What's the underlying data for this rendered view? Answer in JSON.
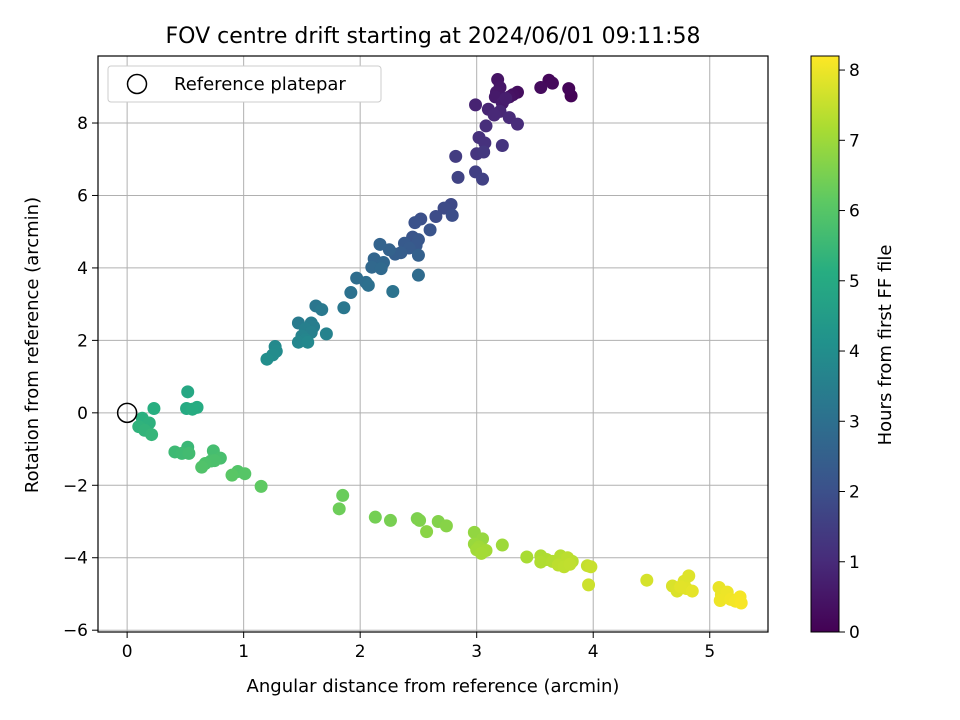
{
  "chart_data": {
    "type": "scatter",
    "title": "FOV centre drift starting at 2024/06/01 09:11:58",
    "xlabel": "Angular distance from reference (arcmin)",
    "ylabel": "Rotation from reference (arcmin)",
    "xlim": [
      -0.25,
      5.5
    ],
    "ylim": [
      -6.05,
      9.85
    ],
    "xticks": [
      0,
      1,
      2,
      3,
      4,
      5
    ],
    "yticks": [
      -6,
      -4,
      -2,
      0,
      2,
      4,
      6,
      8
    ],
    "grid": true,
    "legend": {
      "placement": "top-left",
      "entries": [
        "Reference platepar"
      ]
    },
    "reference_point": {
      "x": 0,
      "y": 0,
      "label": "Reference platepar"
    },
    "colorbar": {
      "label": "Hours from first FF file",
      "colormap": "viridis",
      "range": [
        0,
        8.2
      ],
      "ticks": [
        0,
        1,
        2,
        3,
        4,
        5,
        6,
        7,
        8
      ]
    },
    "points": [
      {
        "x": 3.81,
        "y": 8.75,
        "c": 0.05
      },
      {
        "x": 3.79,
        "y": 8.95,
        "c": 0.1
      },
      {
        "x": 3.62,
        "y": 9.18,
        "c": 0.15
      },
      {
        "x": 3.65,
        "y": 9.1,
        "c": 0.2
      },
      {
        "x": 3.55,
        "y": 8.98,
        "c": 0.25
      },
      {
        "x": 3.35,
        "y": 8.85,
        "c": 0.3
      },
      {
        "x": 3.31,
        "y": 8.78,
        "c": 0.35
      },
      {
        "x": 3.28,
        "y": 8.72,
        "c": 0.4
      },
      {
        "x": 3.18,
        "y": 9.2,
        "c": 0.45
      },
      {
        "x": 3.2,
        "y": 8.98,
        "c": 0.5
      },
      {
        "x": 3.17,
        "y": 8.85,
        "c": 0.55
      },
      {
        "x": 3.16,
        "y": 8.72,
        "c": 0.6
      },
      {
        "x": 3.22,
        "y": 8.55,
        "c": 0.65
      },
      {
        "x": 3.25,
        "y": 8.68,
        "c": 0.7
      },
      {
        "x": 2.99,
        "y": 8.5,
        "c": 0.8
      },
      {
        "x": 3.1,
        "y": 8.38,
        "c": 0.85
      },
      {
        "x": 3.2,
        "y": 8.32,
        "c": 0.9
      },
      {
        "x": 3.15,
        "y": 8.22,
        "c": 0.95
      },
      {
        "x": 3.28,
        "y": 8.15,
        "c": 1.0
      },
      {
        "x": 3.35,
        "y": 7.97,
        "c": 1.05
      },
      {
        "x": 3.08,
        "y": 7.92,
        "c": 1.1
      },
      {
        "x": 3.02,
        "y": 7.6,
        "c": 1.15
      },
      {
        "x": 3.07,
        "y": 7.45,
        "c": 1.2
      },
      {
        "x": 3.22,
        "y": 7.38,
        "c": 1.25
      },
      {
        "x": 3.0,
        "y": 7.15,
        "c": 1.3
      },
      {
        "x": 3.06,
        "y": 7.2,
        "c": 1.35
      },
      {
        "x": 2.82,
        "y": 7.08,
        "c": 1.45
      },
      {
        "x": 2.99,
        "y": 6.65,
        "c": 1.55
      },
      {
        "x": 3.05,
        "y": 6.45,
        "c": 1.6
      },
      {
        "x": 2.84,
        "y": 6.5,
        "c": 1.65
      },
      {
        "x": 2.78,
        "y": 5.75,
        "c": 1.8
      },
      {
        "x": 2.72,
        "y": 5.65,
        "c": 1.85
      },
      {
        "x": 2.65,
        "y": 5.42,
        "c": 1.9
      },
      {
        "x": 2.79,
        "y": 5.45,
        "c": 1.95
      },
      {
        "x": 2.52,
        "y": 5.35,
        "c": 2.0
      },
      {
        "x": 2.47,
        "y": 5.25,
        "c": 2.05
      },
      {
        "x": 2.6,
        "y": 5.05,
        "c": 2.1
      },
      {
        "x": 2.45,
        "y": 4.85,
        "c": 2.15
      },
      {
        "x": 2.5,
        "y": 4.78,
        "c": 2.2
      },
      {
        "x": 2.48,
        "y": 4.62,
        "c": 2.25
      },
      {
        "x": 2.38,
        "y": 4.68,
        "c": 2.3
      },
      {
        "x": 2.42,
        "y": 4.55,
        "c": 2.35
      },
      {
        "x": 2.35,
        "y": 4.42,
        "c": 2.4
      },
      {
        "x": 2.3,
        "y": 4.38,
        "c": 2.45
      },
      {
        "x": 2.5,
        "y": 4.35,
        "c": 2.5
      },
      {
        "x": 2.25,
        "y": 4.5,
        "c": 2.55
      },
      {
        "x": 2.17,
        "y": 4.65,
        "c": 2.6
      },
      {
        "x": 2.12,
        "y": 4.25,
        "c": 2.65
      },
      {
        "x": 2.2,
        "y": 4.15,
        "c": 2.7
      },
      {
        "x": 2.1,
        "y": 4.02,
        "c": 2.75
      },
      {
        "x": 2.18,
        "y": 3.98,
        "c": 2.8
      },
      {
        "x": 2.5,
        "y": 3.8,
        "c": 2.85
      },
      {
        "x": 1.97,
        "y": 3.72,
        "c": 2.9
      },
      {
        "x": 2.05,
        "y": 3.6,
        "c": 2.95
      },
      {
        "x": 2.07,
        "y": 3.52,
        "c": 3.0
      },
      {
        "x": 1.92,
        "y": 3.32,
        "c": 3.05
      },
      {
        "x": 2.28,
        "y": 3.35,
        "c": 3.1
      },
      {
        "x": 1.62,
        "y": 2.95,
        "c": 3.2
      },
      {
        "x": 1.86,
        "y": 2.9,
        "c": 3.25
      },
      {
        "x": 1.67,
        "y": 2.85,
        "c": 3.3
      },
      {
        "x": 1.47,
        "y": 2.48,
        "c": 3.35
      },
      {
        "x": 1.58,
        "y": 2.48,
        "c": 3.4
      },
      {
        "x": 1.6,
        "y": 2.38,
        "c": 3.45
      },
      {
        "x": 1.53,
        "y": 2.32,
        "c": 3.5
      },
      {
        "x": 1.58,
        "y": 2.22,
        "c": 3.55
      },
      {
        "x": 1.71,
        "y": 2.18,
        "c": 3.6
      },
      {
        "x": 1.5,
        "y": 2.12,
        "c": 3.65
      },
      {
        "x": 1.53,
        "y": 2.02,
        "c": 3.7
      },
      {
        "x": 1.47,
        "y": 1.95,
        "c": 3.75
      },
      {
        "x": 1.55,
        "y": 1.95,
        "c": 3.8
      },
      {
        "x": 1.27,
        "y": 1.83,
        "c": 3.85
      },
      {
        "x": 1.28,
        "y": 1.7,
        "c": 3.9
      },
      {
        "x": 1.25,
        "y": 1.6,
        "c": 3.95
      },
      {
        "x": 1.2,
        "y": 1.48,
        "c": 4.0
      },
      {
        "x": 0.52,
        "y": 0.58,
        "c": 4.9
      },
      {
        "x": 0.51,
        "y": 0.12,
        "c": 5.0
      },
      {
        "x": 0.6,
        "y": 0.15,
        "c": 5.05
      },
      {
        "x": 0.56,
        "y": 0.1,
        "c": 5.1
      },
      {
        "x": 0.23,
        "y": 0.12,
        "c": 5.15
      },
      {
        "x": 0.13,
        "y": -0.15,
        "c": 5.2
      },
      {
        "x": 0.19,
        "y": -0.28,
        "c": 5.25
      },
      {
        "x": 0.1,
        "y": -0.38,
        "c": 5.3
      },
      {
        "x": 0.15,
        "y": -0.48,
        "c": 5.35
      },
      {
        "x": 0.21,
        "y": -0.6,
        "c": 5.4
      },
      {
        "x": 0.52,
        "y": -0.95,
        "c": 5.5
      },
      {
        "x": 0.41,
        "y": -1.08,
        "c": 5.55
      },
      {
        "x": 0.47,
        "y": -1.12,
        "c": 5.6
      },
      {
        "x": 0.53,
        "y": -1.12,
        "c": 5.65
      },
      {
        "x": 0.74,
        "y": -1.05,
        "c": 5.7
      },
      {
        "x": 0.8,
        "y": -1.25,
        "c": 5.75
      },
      {
        "x": 0.72,
        "y": -1.33,
        "c": 5.8
      },
      {
        "x": 0.75,
        "y": -1.32,
        "c": 5.82
      },
      {
        "x": 0.67,
        "y": -1.4,
        "c": 5.85
      },
      {
        "x": 0.64,
        "y": -1.5,
        "c": 5.9
      },
      {
        "x": 0.95,
        "y": -1.62,
        "c": 5.95
      },
      {
        "x": 1.01,
        "y": -1.68,
        "c": 6.0
      },
      {
        "x": 0.9,
        "y": -1.72,
        "c": 6.05
      },
      {
        "x": 1.15,
        "y": -2.03,
        "c": 6.15
      },
      {
        "x": 1.85,
        "y": -2.28,
        "c": 6.3
      },
      {
        "x": 1.82,
        "y": -2.65,
        "c": 6.35
      },
      {
        "x": 2.13,
        "y": -2.88,
        "c": 6.45
      },
      {
        "x": 2.26,
        "y": -2.97,
        "c": 6.5
      },
      {
        "x": 2.49,
        "y": -2.92,
        "c": 6.55
      },
      {
        "x": 2.51,
        "y": -2.97,
        "c": 6.6
      },
      {
        "x": 2.67,
        "y": -3.0,
        "c": 6.65
      },
      {
        "x": 2.74,
        "y": -3.12,
        "c": 6.7
      },
      {
        "x": 2.57,
        "y": -3.28,
        "c": 6.75
      },
      {
        "x": 2.98,
        "y": -3.3,
        "c": 6.85
      },
      {
        "x": 3.05,
        "y": -3.48,
        "c": 6.9
      },
      {
        "x": 2.98,
        "y": -3.62,
        "c": 6.95
      },
      {
        "x": 3.22,
        "y": -3.65,
        "c": 7.0
      },
      {
        "x": 3.02,
        "y": -3.7,
        "c": 7.02
      },
      {
        "x": 3.0,
        "y": -3.78,
        "c": 7.05
      },
      {
        "x": 3.08,
        "y": -3.8,
        "c": 7.08
      },
      {
        "x": 3.04,
        "y": -3.88,
        "c": 7.1
      },
      {
        "x": 3.43,
        "y": -3.98,
        "c": 7.15
      },
      {
        "x": 3.55,
        "y": -3.95,
        "c": 7.2
      },
      {
        "x": 3.6,
        "y": -4.05,
        "c": 7.22
      },
      {
        "x": 3.55,
        "y": -4.12,
        "c": 7.25
      },
      {
        "x": 3.65,
        "y": -4.1,
        "c": 7.28
      },
      {
        "x": 3.72,
        "y": -3.95,
        "c": 7.3
      },
      {
        "x": 3.75,
        "y": -4.05,
        "c": 7.32
      },
      {
        "x": 3.82,
        "y": -4.1,
        "c": 7.35
      },
      {
        "x": 3.78,
        "y": -4.0,
        "c": 7.38
      },
      {
        "x": 3.7,
        "y": -4.2,
        "c": 7.4
      },
      {
        "x": 3.75,
        "y": -4.25,
        "c": 7.42
      },
      {
        "x": 3.8,
        "y": -4.18,
        "c": 7.45
      },
      {
        "x": 3.95,
        "y": -4.22,
        "c": 7.5
      },
      {
        "x": 3.98,
        "y": -4.25,
        "c": 7.55
      },
      {
        "x": 3.96,
        "y": -4.75,
        "c": 7.6
      },
      {
        "x": 4.46,
        "y": -4.62,
        "c": 7.7
      },
      {
        "x": 4.68,
        "y": -4.78,
        "c": 7.75
      },
      {
        "x": 4.72,
        "y": -4.92,
        "c": 7.78
      },
      {
        "x": 4.78,
        "y": -4.65,
        "c": 7.8
      },
      {
        "x": 4.82,
        "y": -4.5,
        "c": 7.82
      },
      {
        "x": 4.8,
        "y": -4.85,
        "c": 7.85
      },
      {
        "x": 4.75,
        "y": -4.8,
        "c": 7.87
      },
      {
        "x": 4.85,
        "y": -4.92,
        "c": 7.9
      },
      {
        "x": 5.08,
        "y": -4.82,
        "c": 7.95
      },
      {
        "x": 5.1,
        "y": -5.02,
        "c": 7.97
      },
      {
        "x": 5.15,
        "y": -4.95,
        "c": 8.0
      },
      {
        "x": 5.09,
        "y": -5.18,
        "c": 8.02
      },
      {
        "x": 5.18,
        "y": -5.15,
        "c": 8.05
      },
      {
        "x": 5.22,
        "y": -5.2,
        "c": 8.08
      },
      {
        "x": 5.26,
        "y": -5.08,
        "c": 8.1
      },
      {
        "x": 5.27,
        "y": -5.25,
        "c": 8.12
      }
    ]
  }
}
